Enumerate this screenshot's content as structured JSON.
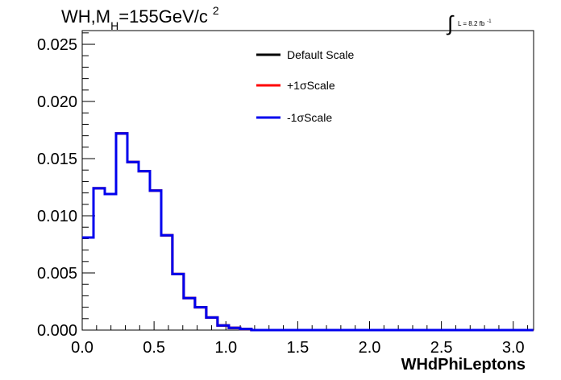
{
  "chart_data": {
    "type": "line",
    "title": {
      "main": "WH,M",
      "subscript": "H",
      "rest": "=155GeV/c",
      "superscript": "2"
    },
    "lumi": {
      "symbol": "∫",
      "text": "L = 8.2 fb",
      "superscript": "-1"
    },
    "xlabel": "WHdPhiLeptons",
    "ylabel": "",
    "xlim": [
      0,
      3.1416
    ],
    "ylim": [
      0,
      0.0262
    ],
    "x_ticks": [
      0,
      0.5,
      1,
      1.5,
      2,
      2.5,
      3
    ],
    "x_tick_labels": [
      "0.0",
      "0.5",
      "1.0",
      "1.5",
      "2.0",
      "2.5",
      "3.0"
    ],
    "y_ticks": [
      0,
      0.005,
      0.01,
      0.015,
      0.02,
      0.025
    ],
    "y_tick_labels": [
      "0.000",
      "0.005",
      "0.010",
      "0.015",
      "0.020",
      "0.025"
    ],
    "grid": false,
    "legend_position": "top-center",
    "bin_width": 0.0785,
    "series": [
      {
        "name": "Default Scale",
        "color": "#000000",
        "values": [
          0.0081,
          0.0124,
          0.0119,
          0.0172,
          0.0147,
          0.0139,
          0.0122,
          0.0083,
          0.0049,
          0.0028,
          0.002,
          0.0011,
          0.0004,
          0.0002,
          0.0001,
          0.0,
          0,
          0,
          0,
          0,
          0,
          0,
          0,
          0,
          0,
          0,
          0,
          0,
          0,
          0,
          0,
          0,
          0,
          0,
          0,
          0,
          0,
          0,
          0,
          0
        ]
      },
      {
        "name": "+1σScale",
        "color": "#ff0000",
        "values": [
          0.0081,
          0.0124,
          0.0119,
          0.0172,
          0.0147,
          0.0139,
          0.0122,
          0.0083,
          0.0049,
          0.0028,
          0.002,
          0.0011,
          0.0004,
          0.0002,
          0.0001,
          0.0,
          0,
          0,
          0,
          0,
          0,
          0,
          0,
          0,
          0,
          0,
          0,
          0,
          0,
          0,
          0,
          0,
          0,
          0,
          0,
          0,
          0,
          0,
          0,
          0
        ]
      },
      {
        "name": "-1σScale",
        "color": "#0000ee",
        "values": [
          0.0081,
          0.0124,
          0.0119,
          0.0172,
          0.0147,
          0.0139,
          0.0122,
          0.0083,
          0.0049,
          0.0028,
          0.002,
          0.0011,
          0.0004,
          0.0002,
          0.0001,
          0.0,
          0,
          0,
          0,
          0,
          0,
          0,
          0,
          0,
          0,
          0,
          0,
          0,
          0,
          0,
          0,
          0,
          0,
          0,
          0,
          0,
          0,
          0,
          0,
          0
        ]
      }
    ]
  }
}
